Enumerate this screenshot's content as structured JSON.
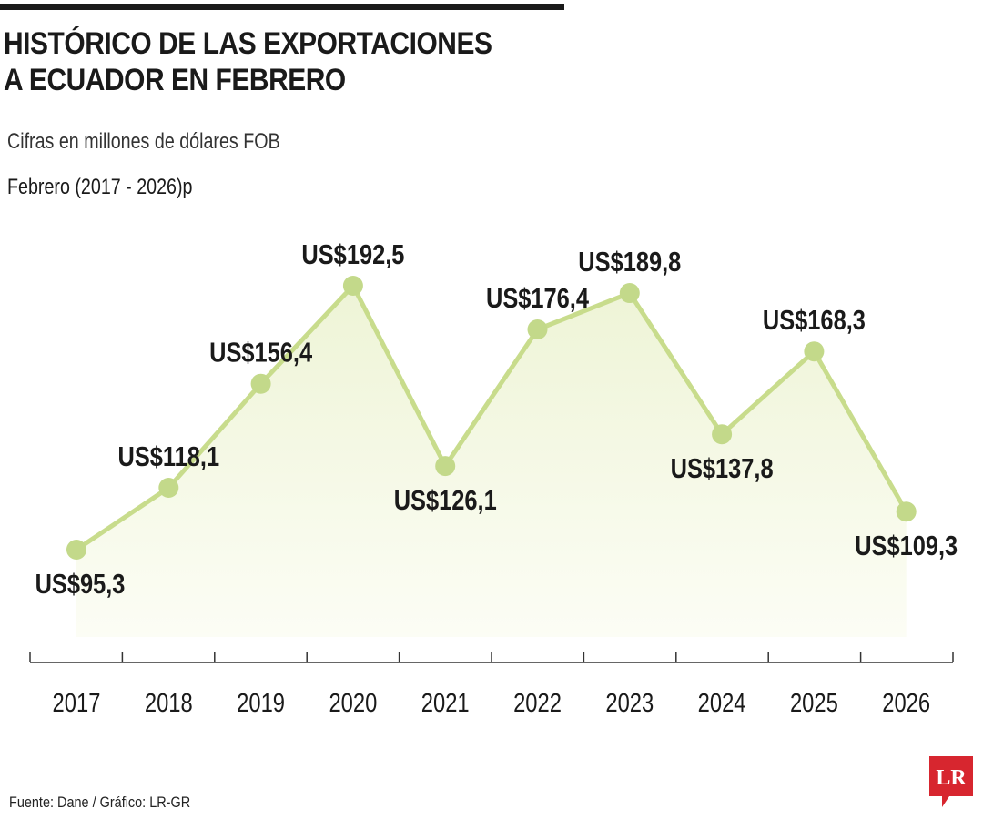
{
  "header": {
    "title_line1": "HISTÓRICO DE LAS EXPORTACIONES",
    "title_line2": "A ECUADOR EN FEBRERO",
    "subtitle": "Cifras en millones de dólares FOB",
    "period": "Febrero (2017 - 2026)p"
  },
  "footer": {
    "source": "Fuente: Dane / Gráfico: LR-GR",
    "logo_text": "LR"
  },
  "colors": {
    "line": "#c8dc8c",
    "marker": "#c3d98a",
    "area_top": "#eef4d6",
    "area_bottom": "#fcfdf5",
    "axis": "#333333",
    "text": "#1a1a1a",
    "logo": "#d7262f"
  },
  "chart_data": {
    "type": "line",
    "title": "HISTÓRICO DE LAS EXPORTACIONES A ECUADOR EN FEBRERO",
    "subtitle": "Cifras en millones de dólares FOB",
    "categories": [
      "2017",
      "2018",
      "2019",
      "2020",
      "2021",
      "2022",
      "2023",
      "2024",
      "2025",
      "2026"
    ],
    "values": [
      95.3,
      118.1,
      156.4,
      192.5,
      126.1,
      176.4,
      189.8,
      137.8,
      168.3,
      109.3
    ],
    "data_labels": [
      "US$95,3",
      "US$118,1",
      "US$156,4",
      "US$192,5",
      "US$126,1",
      "US$176,4",
      "US$189,8",
      "US$137,8",
      "US$168,3",
      "US$109,3"
    ],
    "label_positions": [
      "below",
      "above",
      "above",
      "above",
      "below",
      "above",
      "above",
      "below",
      "above",
      "below"
    ],
    "ylim": [
      0,
      210
    ],
    "xlabel": "",
    "ylabel": "",
    "grid": false,
    "legend": "none",
    "area_fill": true
  }
}
